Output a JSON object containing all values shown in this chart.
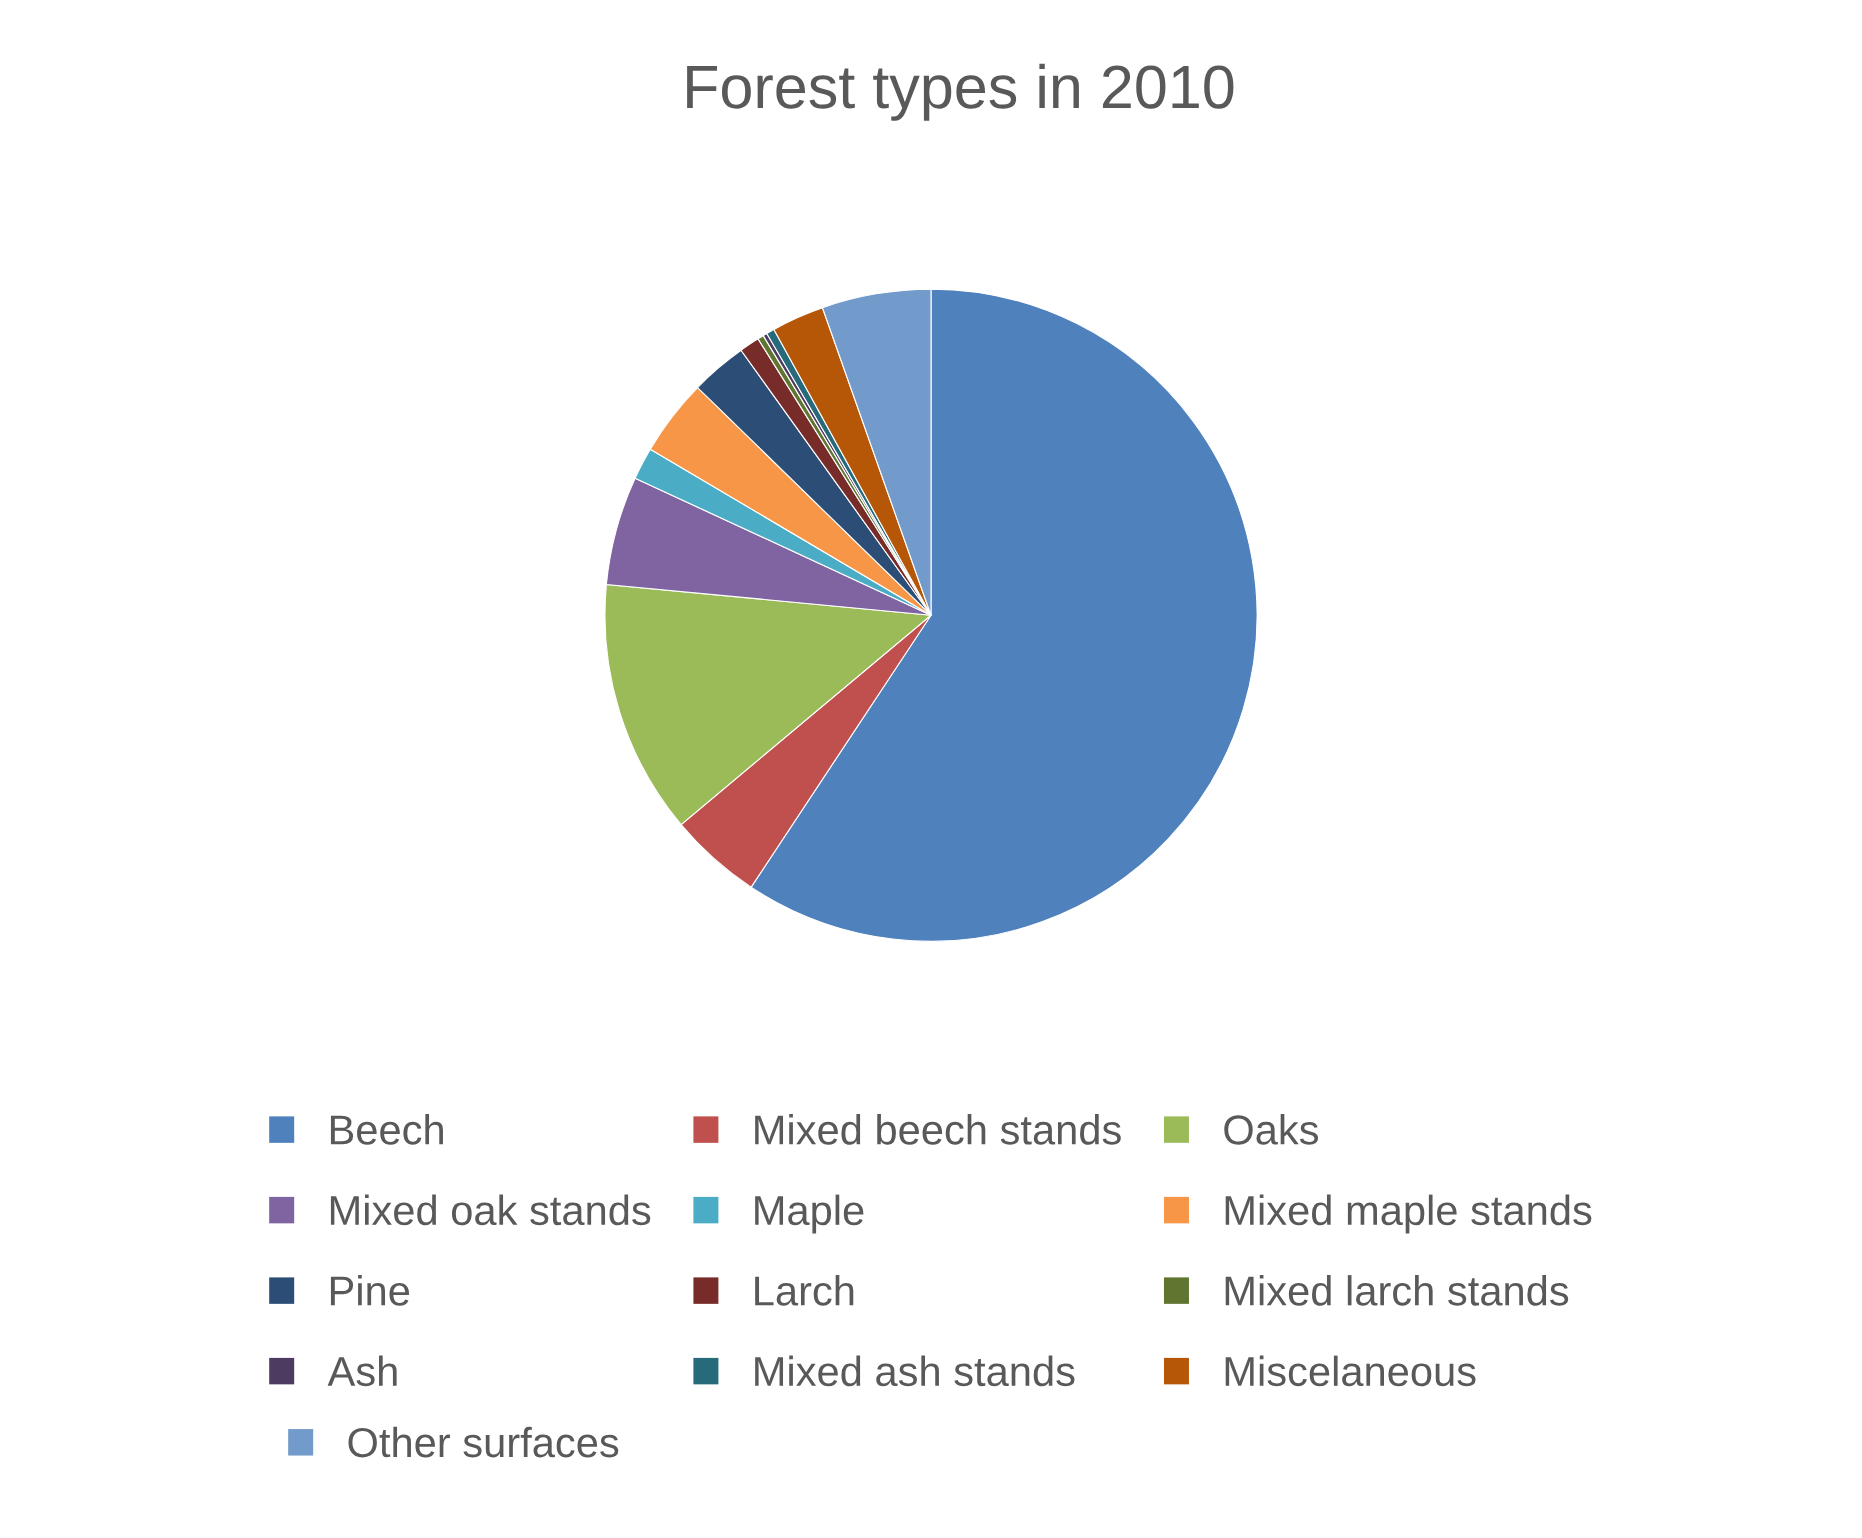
{
  "chart_data": {
    "type": "pie",
    "title": "Forest types in 2010",
    "categories": [
      "Beech",
      "Mixed beech stands",
      "Oaks",
      "Mixed oak stands",
      "Maple",
      "Mixed maple stands",
      "Pine",
      "Larch",
      "Mixed larch stands",
      "Ash",
      "Mixed ash stands",
      "Miscelaneous",
      "Other surfaces"
    ],
    "values": [
      59.3,
      4.6,
      12.6,
      5.4,
      1.6,
      3.8,
      2.8,
      1.0,
      0.3,
      0.2,
      0.4,
      2.6,
      5.4
    ],
    "colors": [
      "#4f81bd",
      "#c0504d",
      "#9bbb59",
      "#8064a2",
      "#4bacc6",
      "#f79646",
      "#2c4d75",
      "#772c2a",
      "#5f7530",
      "#4d3b62",
      "#276a7c",
      "#b65708",
      "#729aca"
    ],
    "legend": "bottom"
  }
}
